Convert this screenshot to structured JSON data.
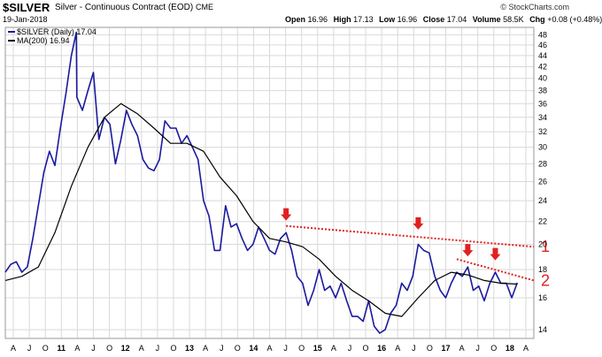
{
  "header": {
    "symbol": "$SILVER",
    "description": "Silver - Continuous Contract (EOD)",
    "exchange": "CME",
    "date": "19-Jan-2018",
    "quote": {
      "open_label": "Open",
      "open": "16.96",
      "high_label": "High",
      "high": "17.13",
      "low_label": "Low",
      "low": "16.96",
      "close_label": "Close",
      "close": "17.04",
      "volume_label": "Volume",
      "volume": "58.5K",
      "chg_label": "Chg",
      "chg": "+0.08 (+0.48%)"
    },
    "credit": "© StockCharts.com"
  },
  "legend": [
    {
      "label": "$SILVER (Daily) 17.04",
      "color": "#1a1aa0"
    },
    {
      "label": "MA(200) 16.94",
      "color": "#000000"
    }
  ],
  "colors": {
    "price": "#1a1aa0",
    "ma": "#000000",
    "trend": "#e02020",
    "grid": "#d9d9d9"
  },
  "chart_data": {
    "type": "line",
    "x_tick_labels": [
      "A",
      "J",
      "O",
      "11",
      "A",
      "J",
      "O",
      "12",
      "A",
      "J",
      "O",
      "13",
      "A",
      "J",
      "O",
      "14",
      "A",
      "J",
      "O",
      "15",
      "A",
      "J",
      "O",
      "16",
      "A",
      "J",
      "O",
      "17",
      "A",
      "J",
      "O",
      "18",
      "A"
    ],
    "x_tick_bold": [
      "11",
      "12",
      "13",
      "14",
      "15",
      "16",
      "17",
      "18"
    ],
    "x_start": "2010-04",
    "x_end": "2018-04",
    "y_scale": "log",
    "ylim": [
      13.5,
      49.5
    ],
    "y_ticks": [
      14,
      16,
      18,
      20,
      22,
      24,
      26,
      28,
      30,
      32,
      34,
      36,
      38,
      40,
      42,
      44,
      46,
      48
    ],
    "series": [
      {
        "name": "$SILVER (Daily)",
        "style": "price",
        "points": [
          [
            "2010-04",
            17.8
          ],
          [
            "2010-05",
            18.4
          ],
          [
            "2010-06",
            18.6
          ],
          [
            "2010-07",
            17.8
          ],
          [
            "2010-08",
            18.2
          ],
          [
            "2010-09",
            20.5
          ],
          [
            "2010-10",
            23.5
          ],
          [
            "2010-11",
            27.0
          ],
          [
            "2010-12",
            29.5
          ],
          [
            "2011-01",
            27.8
          ],
          [
            "2011-02",
            32.5
          ],
          [
            "2011-03",
            37.5
          ],
          [
            "2011-04",
            44.0
          ],
          [
            "2011-04-28",
            48.5
          ],
          [
            "2011-05",
            37.0
          ],
          [
            "2011-06",
            35.0
          ],
          [
            "2011-07",
            38.0
          ],
          [
            "2011-08",
            41.0
          ],
          [
            "2011-09",
            31.0
          ],
          [
            "2011-10",
            34.0
          ],
          [
            "2011-11",
            33.0
          ],
          [
            "2011-12",
            28.0
          ],
          [
            "2012-01",
            31.0
          ],
          [
            "2012-02",
            35.0
          ],
          [
            "2012-03",
            33.0
          ],
          [
            "2012-04",
            31.5
          ],
          [
            "2012-05",
            28.5
          ],
          [
            "2012-06",
            27.5
          ],
          [
            "2012-07",
            27.2
          ],
          [
            "2012-08",
            28.5
          ],
          [
            "2012-09",
            33.5
          ],
          [
            "2012-10",
            32.5
          ],
          [
            "2012-11",
            32.5
          ],
          [
            "2012-12",
            30.5
          ],
          [
            "2013-01",
            31.5
          ],
          [
            "2013-02",
            30.0
          ],
          [
            "2013-03",
            28.5
          ],
          [
            "2013-04",
            24.0
          ],
          [
            "2013-05",
            22.5
          ],
          [
            "2013-06",
            19.5
          ],
          [
            "2013-07",
            19.5
          ],
          [
            "2013-08",
            23.5
          ],
          [
            "2013-09",
            21.5
          ],
          [
            "2013-10",
            21.8
          ],
          [
            "2013-11",
            20.5
          ],
          [
            "2013-12",
            19.5
          ],
          [
            "2014-01",
            20.0
          ],
          [
            "2014-02",
            21.5
          ],
          [
            "2014-03",
            20.5
          ],
          [
            "2014-04",
            19.5
          ],
          [
            "2014-05",
            19.2
          ],
          [
            "2014-06",
            20.5
          ],
          [
            "2014-07",
            21.0
          ],
          [
            "2014-08",
            19.5
          ],
          [
            "2014-09",
            17.5
          ],
          [
            "2014-10",
            17.0
          ],
          [
            "2014-11",
            15.5
          ],
          [
            "2014-12",
            16.5
          ],
          [
            "2015-01",
            18.0
          ],
          [
            "2015-02",
            16.5
          ],
          [
            "2015-03",
            16.8
          ],
          [
            "2015-04",
            16.0
          ],
          [
            "2015-05",
            17.0
          ],
          [
            "2015-06",
            15.8
          ],
          [
            "2015-07",
            14.8
          ],
          [
            "2015-08",
            14.8
          ],
          [
            "2015-09",
            14.5
          ],
          [
            "2015-10",
            15.8
          ],
          [
            "2015-11",
            14.2
          ],
          [
            "2015-12",
            13.8
          ],
          [
            "2016-01",
            14.0
          ],
          [
            "2016-02",
            15.0
          ],
          [
            "2016-03",
            15.5
          ],
          [
            "2016-04",
            17.0
          ],
          [
            "2016-05",
            16.5
          ],
          [
            "2016-06",
            17.5
          ],
          [
            "2016-07",
            20.0
          ],
          [
            "2016-08",
            19.5
          ],
          [
            "2016-09",
            19.3
          ],
          [
            "2016-10",
            17.5
          ],
          [
            "2016-11",
            16.5
          ],
          [
            "2016-12",
            16.0
          ],
          [
            "2017-01",
            17.0
          ],
          [
            "2017-02",
            17.8
          ],
          [
            "2017-03",
            17.5
          ],
          [
            "2017-04",
            18.2
          ],
          [
            "2017-05",
            16.5
          ],
          [
            "2017-06",
            16.8
          ],
          [
            "2017-07",
            15.8
          ],
          [
            "2017-08",
            17.0
          ],
          [
            "2017-09",
            17.8
          ],
          [
            "2017-10",
            17.0
          ],
          [
            "2017-11",
            17.0
          ],
          [
            "2017-12",
            16.0
          ],
          [
            "2018-01",
            17.04
          ]
        ]
      },
      {
        "name": "MA(200)",
        "style": "ma",
        "points": [
          [
            "2010-04",
            17.2
          ],
          [
            "2010-07",
            17.5
          ],
          [
            "2010-10",
            18.2
          ],
          [
            "2011-01",
            21.0
          ],
          [
            "2011-04",
            25.5
          ],
          [
            "2011-07",
            30.0
          ],
          [
            "2011-10",
            34.0
          ],
          [
            "2012-01",
            36.0
          ],
          [
            "2012-04",
            34.5
          ],
          [
            "2012-07",
            32.5
          ],
          [
            "2012-10",
            30.5
          ],
          [
            "2013-01",
            30.5
          ],
          [
            "2013-04",
            29.5
          ],
          [
            "2013-07",
            26.5
          ],
          [
            "2013-10",
            24.5
          ],
          [
            "2014-01",
            22.0
          ],
          [
            "2014-04",
            20.5
          ],
          [
            "2014-07",
            20.2
          ],
          [
            "2014-10",
            19.8
          ],
          [
            "2015-01",
            18.8
          ],
          [
            "2015-04",
            17.5
          ],
          [
            "2015-07",
            16.5
          ],
          [
            "2015-10",
            15.8
          ],
          [
            "2016-01",
            15.0
          ],
          [
            "2016-04",
            14.8
          ],
          [
            "2016-07",
            16.0
          ],
          [
            "2016-10",
            17.2
          ],
          [
            "2017-01",
            17.8
          ],
          [
            "2017-04",
            17.6
          ],
          [
            "2017-07",
            17.2
          ],
          [
            "2017-10",
            17.0
          ],
          [
            "2018-01",
            16.94
          ]
        ]
      }
    ],
    "trendlines": [
      {
        "label": "1",
        "from": [
          "2014-07",
          21.6
        ],
        "to": [
          "2018-04",
          19.8
        ]
      },
      {
        "label": "2",
        "from": [
          "2017-02",
          18.8
        ],
        "to": [
          "2018-04",
          17.2
        ]
      }
    ],
    "markers": [
      {
        "shape": "down-arrow",
        "x": "2014-07",
        "y": 21.6
      },
      {
        "shape": "down-arrow",
        "x": "2016-07",
        "y": 20.8
      },
      {
        "shape": "down-arrow",
        "x": "2017-04",
        "y": 18.6
      },
      {
        "shape": "down-arrow",
        "x": "2017-09",
        "y": 18.3
      }
    ],
    "grid": true,
    "legend_position": "top-left"
  }
}
